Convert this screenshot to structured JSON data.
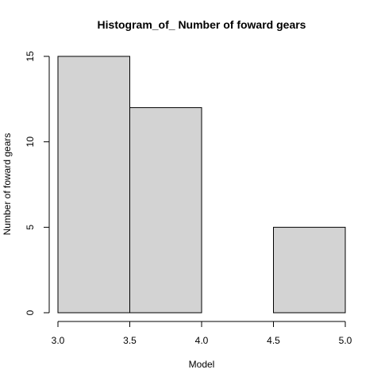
{
  "chart_data": {
    "type": "bar",
    "title": "Histogram_of_ Number of foward gears",
    "xlabel": "Model",
    "ylabel": "Number of foward gears",
    "bins": [
      {
        "start": 3.0,
        "end": 3.5,
        "count": 15
      },
      {
        "start": 3.5,
        "end": 4.0,
        "count": 12
      },
      {
        "start": 4.0,
        "end": 4.5,
        "count": 0
      },
      {
        "start": 4.5,
        "end": 5.0,
        "count": 5
      }
    ],
    "xlim": [
      3.0,
      5.0
    ],
    "ylim": [
      0,
      15
    ],
    "x_ticks": [
      "3.0",
      "3.5",
      "4.0",
      "4.5",
      "5.0"
    ],
    "y_ticks": [
      "0",
      "5",
      "10",
      "15"
    ],
    "bar_color": "#D3D3D3",
    "bar_border_color": "#000000",
    "grid": false,
    "legend": "none"
  }
}
